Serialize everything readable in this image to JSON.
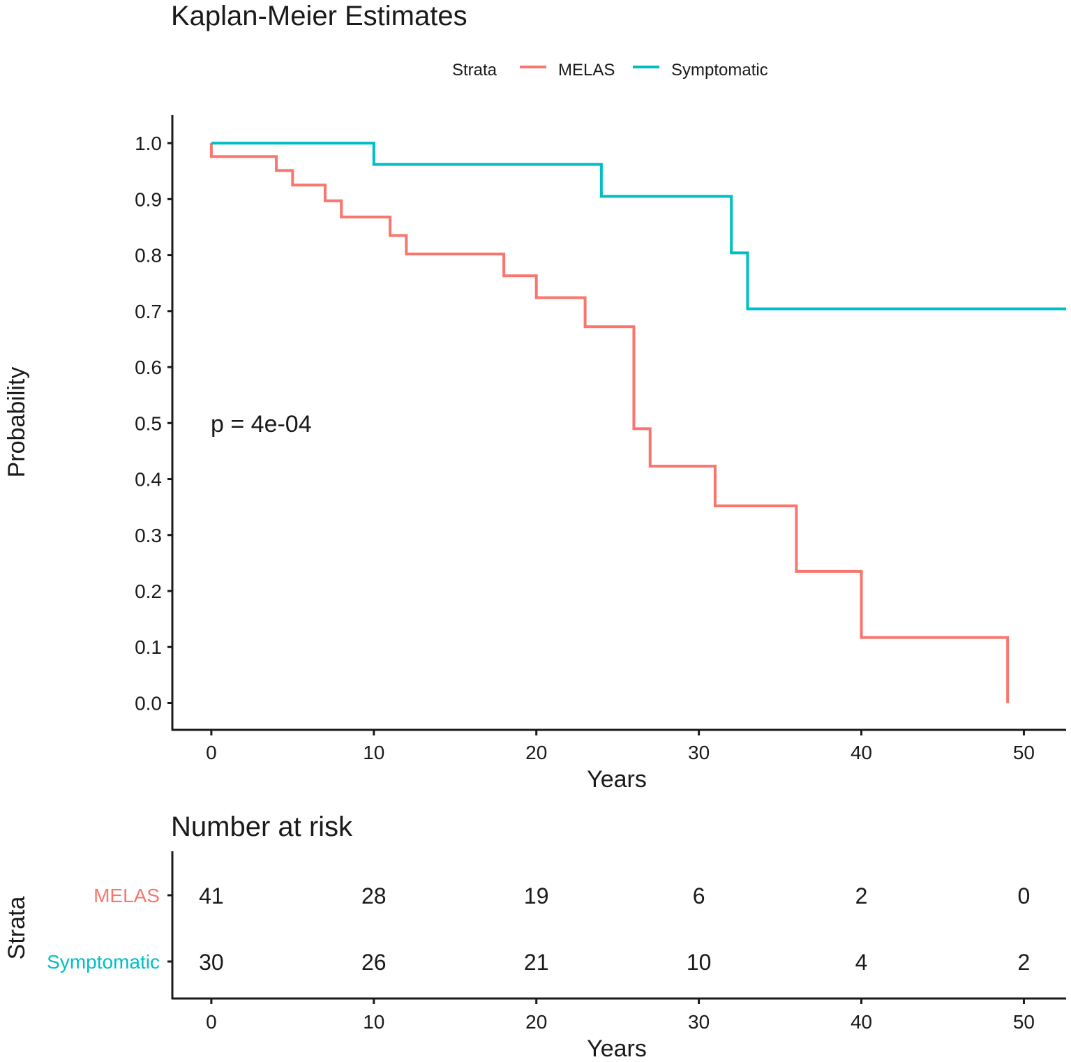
{
  "chart_data": [
    {
      "type": "line",
      "subtype": "kaplan-meier-step",
      "title": "Kaplan-Meier Estimates",
      "xlabel": "Years",
      "ylabel": "Probability",
      "xlim": [
        -2.4,
        52.6
      ],
      "ylim": [
        -0.048,
        1.05
      ],
      "xticks": [
        0,
        10,
        20,
        30,
        40,
        50
      ],
      "yticks": [
        0.0,
        0.1,
        0.2,
        0.3,
        0.4,
        0.5,
        0.6,
        0.7,
        0.8,
        0.9,
        1.0
      ],
      "ytick_labels": [
        "0.0",
        "0.1",
        "0.2",
        "0.3",
        "0.4",
        "0.5",
        "0.6",
        "0.7",
        "0.8",
        "0.9",
        "1.0"
      ],
      "grid": false,
      "legend": {
        "title": "Strata",
        "placement": "top",
        "entries": [
          "MELAS",
          "Symptomatic"
        ]
      },
      "annotation": {
        "text": "p = 4e-04",
        "x": 0,
        "y": 0.5
      },
      "series": [
        {
          "name": "MELAS",
          "color": "#F8766D",
          "x": [
            0,
            4,
            5,
            7,
            8,
            11,
            12,
            18,
            20,
            23,
            26,
            27,
            31,
            36,
            40,
            49
          ],
          "y": [
            0.976,
            0.951,
            0.925,
            0.897,
            0.868,
            0.835,
            0.802,
            0.763,
            0.724,
            0.672,
            0.49,
            0.423,
            0.352,
            0.235,
            0.117,
            0.0
          ],
          "end_x": 49
        },
        {
          "name": "Symptomatic",
          "color": "#00BFC4",
          "x": [
            0,
            10,
            24,
            32,
            33
          ],
          "y": [
            1.0,
            0.962,
            0.905,
            0.804,
            0.704
          ],
          "end_x": 52.6
        }
      ]
    },
    {
      "type": "table",
      "title": "Number at risk",
      "xlabel": "Years",
      "ylabel": "Strata",
      "xticks": [
        0,
        10,
        20,
        30,
        40,
        50
      ],
      "rows": [
        {
          "name": "MELAS",
          "color": "#F8766D",
          "values": [
            "41",
            "28",
            "19",
            "6",
            "2",
            "0"
          ]
        },
        {
          "name": "Symptomatic",
          "color": "#00BFC4",
          "values": [
            "30",
            "26",
            "21",
            "10",
            "4",
            "2"
          ]
        }
      ]
    }
  ]
}
